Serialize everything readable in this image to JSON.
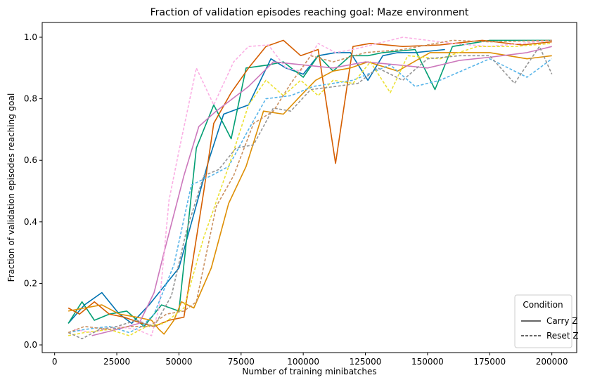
{
  "chart_data": {
    "type": "line",
    "title": "Fraction of validation episodes reaching goal: Maze environment",
    "xlabel": "Number of training minibatches",
    "ylabel": "Fraction of validation episodes reaching goal",
    "xlim": [
      -5000,
      210000
    ],
    "ylim": [
      -0.025,
      1.048
    ],
    "xticks": [
      0,
      25000,
      50000,
      75000,
      100000,
      125000,
      150000,
      175000,
      200000
    ],
    "xtick_labels": [
      "0",
      "25000",
      "50000",
      "75000",
      "100000",
      "125000",
      "150000",
      "175000",
      "200000"
    ],
    "yticks": [
      0,
      0.2,
      0.4,
      0.6,
      0.8,
      1.0
    ],
    "ytick_labels": [
      "0.0",
      "0.2",
      "0.4",
      "0.6",
      "0.8",
      "1.0"
    ],
    "grid": false,
    "legend": {
      "title": "Condition",
      "placement": "lower-right",
      "entries": [
        {
          "label": "Carry Z",
          "style": "solid"
        },
        {
          "label": "Reset Z",
          "style": "dashed"
        }
      ]
    },
    "series": [
      {
        "condition": "Carry Z",
        "style": "solid",
        "color": "#0173b2",
        "points": [
          [
            5500,
            0.07
          ],
          [
            12000,
            0.13
          ],
          [
            19000,
            0.17
          ],
          [
            26000,
            0.1
          ],
          [
            31000,
            0.07
          ],
          [
            38000,
            0.13
          ],
          [
            50000,
            0.25
          ],
          [
            62000,
            0.6
          ],
          [
            68000,
            0.75
          ],
          [
            78000,
            0.78
          ],
          [
            87000,
            0.93
          ],
          [
            93000,
            0.9
          ],
          [
            100000,
            0.88
          ],
          [
            106000,
            0.94
          ],
          [
            113000,
            0.95
          ],
          [
            119000,
            0.95
          ],
          [
            126000,
            0.86
          ],
          [
            132000,
            0.94
          ],
          [
            138000,
            0.95
          ],
          [
            145000,
            0.95
          ],
          [
            157000,
            0.96
          ]
        ]
      },
      {
        "condition": "Carry Z",
        "style": "solid",
        "color": "#029e73",
        "points": [
          [
            5500,
            0.07
          ],
          [
            11000,
            0.14
          ],
          [
            16000,
            0.08
          ],
          [
            22000,
            0.1
          ],
          [
            29000,
            0.11
          ],
          [
            36000,
            0.06
          ],
          [
            43000,
            0.13
          ],
          [
            50000,
            0.11
          ],
          [
            57000,
            0.64
          ],
          [
            64000,
            0.78
          ],
          [
            71000,
            0.67
          ],
          [
            77000,
            0.9
          ],
          [
            86000,
            0.91
          ],
          [
            92000,
            0.92
          ],
          [
            100000,
            0.87
          ],
          [
            106000,
            0.94
          ],
          [
            112000,
            0.89
          ],
          [
            119000,
            0.94
          ],
          [
            126000,
            0.94
          ],
          [
            132000,
            0.95
          ],
          [
            145000,
            0.96
          ],
          [
            153000,
            0.83
          ],
          [
            160000,
            0.97
          ],
          [
            175000,
            0.99
          ],
          [
            200000,
            0.99
          ]
        ]
      },
      {
        "condition": "Carry Z",
        "style": "solid",
        "color": "#d55e00",
        "points": [
          [
            5500,
            0.12
          ],
          [
            10000,
            0.1
          ],
          [
            16000,
            0.14
          ],
          [
            22000,
            0.1
          ],
          [
            28000,
            0.09
          ],
          [
            35000,
            0.07
          ],
          [
            40000,
            0.06
          ],
          [
            46000,
            0.08
          ],
          [
            52000,
            0.09
          ],
          [
            60000,
            0.5
          ],
          [
            64000,
            0.72
          ],
          [
            71000,
            0.82
          ],
          [
            78000,
            0.9
          ],
          [
            85000,
            0.97
          ],
          [
            92000,
            0.99
          ],
          [
            99000,
            0.94
          ],
          [
            106000,
            0.96
          ],
          [
            113000,
            0.59
          ],
          [
            120000,
            0.97
          ],
          [
            127000,
            0.98
          ],
          [
            140000,
            0.97
          ],
          [
            155000,
            0.975
          ],
          [
            172000,
            0.99
          ],
          [
            188000,
            0.975
          ],
          [
            200000,
            0.985
          ]
        ]
      },
      {
        "condition": "Carry Z",
        "style": "solid",
        "color": "#de8f05",
        "points": [
          [
            5500,
            0.11
          ],
          [
            12000,
            0.12
          ],
          [
            19000,
            0.13
          ],
          [
            26000,
            0.1
          ],
          [
            33000,
            0.09
          ],
          [
            39000,
            0.08
          ],
          [
            42000,
            0.05
          ],
          [
            44000,
            0.035
          ],
          [
            48000,
            0.08
          ],
          [
            51000,
            0.14
          ],
          [
            56000,
            0.12
          ],
          [
            63000,
            0.25
          ],
          [
            70000,
            0.46
          ],
          [
            77000,
            0.58
          ],
          [
            84000,
            0.76
          ],
          [
            92000,
            0.75
          ],
          [
            99000,
            0.81
          ],
          [
            105000,
            0.86
          ],
          [
            112000,
            0.89
          ],
          [
            119000,
            0.9
          ],
          [
            126000,
            0.92
          ],
          [
            138000,
            0.89
          ],
          [
            151000,
            0.95
          ],
          [
            175000,
            0.95
          ],
          [
            190000,
            0.93
          ],
          [
            200000,
            0.94
          ]
        ]
      },
      {
        "condition": "Carry Z",
        "style": "solid",
        "color": "#cc78bc",
        "points": [
          [
            15000,
            0.03
          ],
          [
            25000,
            0.05
          ],
          [
            34000,
            0.07
          ],
          [
            40000,
            0.17
          ],
          [
            44000,
            0.3
          ],
          [
            52000,
            0.55
          ],
          [
            58000,
            0.71
          ],
          [
            65000,
            0.76
          ],
          [
            78000,
            0.84
          ],
          [
            88000,
            0.92
          ],
          [
            100000,
            0.91
          ],
          [
            112000,
            0.9
          ],
          [
            125000,
            0.92
          ],
          [
            138000,
            0.91
          ],
          [
            150000,
            0.9
          ],
          [
            163000,
            0.925
          ],
          [
            175000,
            0.935
          ],
          [
            190000,
            0.95
          ],
          [
            200000,
            0.97
          ]
        ]
      },
      {
        "condition": "Reset Z",
        "style": "dashed",
        "color": "#fbafe4",
        "points": [
          [
            8000,
            0.05
          ],
          [
            15000,
            0.04
          ],
          [
            25000,
            0.06
          ],
          [
            33000,
            0.05
          ],
          [
            39000,
            0.03
          ],
          [
            42000,
            0.12
          ],
          [
            46000,
            0.47
          ],
          [
            50000,
            0.63
          ],
          [
            57000,
            0.9
          ],
          [
            64000,
            0.78
          ],
          [
            72000,
            0.92
          ],
          [
            78000,
            0.97
          ],
          [
            86000,
            0.975
          ],
          [
            93000,
            0.9
          ],
          [
            99000,
            0.89
          ],
          [
            106000,
            0.98
          ],
          [
            113000,
            0.95
          ],
          [
            120000,
            0.96
          ],
          [
            140000,
            1.0
          ],
          [
            160000,
            0.98
          ],
          [
            175000,
            0.97
          ],
          [
            200000,
            0.99
          ]
        ]
      },
      {
        "condition": "Reset Z",
        "style": "dashed",
        "color": "#56b4e9",
        "points": [
          [
            5500,
            0.04
          ],
          [
            12000,
            0.05
          ],
          [
            22000,
            0.06
          ],
          [
            30000,
            0.04
          ],
          [
            35000,
            0.06
          ],
          [
            40000,
            0.1
          ],
          [
            48000,
            0.26
          ],
          [
            55000,
            0.52
          ],
          [
            63000,
            0.55
          ],
          [
            70000,
            0.58
          ],
          [
            78000,
            0.7
          ],
          [
            85000,
            0.8
          ],
          [
            95000,
            0.81
          ],
          [
            104000,
            0.84
          ],
          [
            112000,
            0.85
          ],
          [
            120000,
            0.86
          ],
          [
            135000,
            0.91
          ],
          [
            145000,
            0.84
          ],
          [
            155000,
            0.86
          ],
          [
            175000,
            0.93
          ],
          [
            190000,
            0.87
          ],
          [
            200000,
            0.93
          ]
        ]
      },
      {
        "condition": "Reset Z",
        "style": "dashed",
        "color": "#ece133",
        "points": [
          [
            5500,
            0.03
          ],
          [
            12000,
            0.04
          ],
          [
            22000,
            0.05
          ],
          [
            30000,
            0.03
          ],
          [
            37000,
            0.06
          ],
          [
            44000,
            0.07
          ],
          [
            52000,
            0.12
          ],
          [
            60000,
            0.35
          ],
          [
            70000,
            0.58
          ],
          [
            78000,
            0.78
          ],
          [
            85000,
            0.86
          ],
          [
            92000,
            0.81
          ],
          [
            99000,
            0.86
          ],
          [
            106000,
            0.81
          ],
          [
            112000,
            0.86
          ],
          [
            120000,
            0.85
          ],
          [
            127000,
            0.92
          ],
          [
            135000,
            0.82
          ],
          [
            142000,
            0.94
          ],
          [
            155000,
            0.93
          ],
          [
            170000,
            0.97
          ],
          [
            185000,
            0.97
          ],
          [
            200000,
            0.98
          ]
        ]
      },
      {
        "condition": "Reset Z",
        "style": "dashed",
        "color": "#949494",
        "points": [
          [
            5500,
            0.04
          ],
          [
            11000,
            0.02
          ],
          [
            18000,
            0.05
          ],
          [
            25000,
            0.06
          ],
          [
            33000,
            0.08
          ],
          [
            40000,
            0.06
          ],
          [
            47000,
            0.16
          ],
          [
            53000,
            0.37
          ],
          [
            60000,
            0.55
          ],
          [
            66000,
            0.57
          ],
          [
            73000,
            0.64
          ],
          [
            80000,
            0.65
          ],
          [
            88000,
            0.77
          ],
          [
            95000,
            0.76
          ],
          [
            103000,
            0.83
          ],
          [
            113000,
            0.84
          ],
          [
            122000,
            0.85
          ],
          [
            130000,
            0.9
          ],
          [
            140000,
            0.86
          ],
          [
            150000,
            0.93
          ],
          [
            163000,
            0.94
          ],
          [
            175000,
            0.94
          ],
          [
            185000,
            0.85
          ],
          [
            195000,
            0.97
          ],
          [
            200000,
            0.88
          ]
        ]
      },
      {
        "condition": "Reset Z",
        "style": "dashed",
        "color": "#ca9161",
        "points": [
          [
            5500,
            0.04
          ],
          [
            12000,
            0.06
          ],
          [
            22000,
            0.05
          ],
          [
            30000,
            0.06
          ],
          [
            38000,
            0.06
          ],
          [
            45000,
            0.1
          ],
          [
            52000,
            0.11
          ],
          [
            57000,
            0.14
          ],
          [
            65000,
            0.45
          ],
          [
            72000,
            0.55
          ],
          [
            80000,
            0.72
          ],
          [
            88000,
            0.76
          ],
          [
            95000,
            0.85
          ],
          [
            103000,
            0.94
          ],
          [
            112000,
            0.92
          ],
          [
            125000,
            0.95
          ],
          [
            140000,
            0.96
          ],
          [
            160000,
            0.99
          ],
          [
            175000,
            0.985
          ],
          [
            200000,
            0.99
          ]
        ]
      }
    ]
  }
}
